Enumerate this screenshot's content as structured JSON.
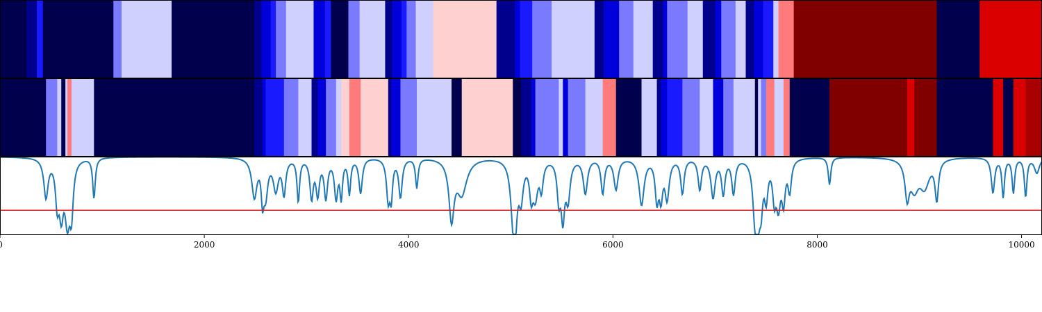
{
  "chart_data": {
    "type": "heatmap",
    "x_range": [
      0,
      10200
    ],
    "x_ticks": [
      {
        "value": 0,
        "label": "0"
      },
      {
        "value": 2000,
        "label": "2000"
      },
      {
        "value": 4000,
        "label": "4000"
      },
      {
        "value": 6000,
        "label": "6000"
      },
      {
        "value": 8000,
        "label": "8000"
      },
      {
        "value": 10000,
        "label": "10000"
      }
    ],
    "colorscale": "seismic (dark blue → white → dark red)",
    "colors": {
      "-4": "#00004c",
      "-3": "#00008c",
      "-2": "#0000da",
      "-1": "#1a1aff",
      "0": "#7a7aff",
      "1": "#d0d0ff",
      "2": "#ffd0d0",
      "3": "#ff7a7a",
      "4": "#ff1a1a",
      "5": "#da0000",
      "6": "#a80000",
      "7": "#800000"
    },
    "strips": [
      {
        "segments": [
          [
            0,
            260,
            -4
          ],
          [
            260,
            360,
            -3
          ],
          [
            360,
            420,
            -1
          ],
          [
            420,
            590,
            -4
          ],
          [
            590,
            1110,
            -4
          ],
          [
            1110,
            1190,
            0
          ],
          [
            1190,
            1680,
            1
          ],
          [
            1680,
            2490,
            -4
          ],
          [
            2490,
            2560,
            -3
          ],
          [
            2560,
            2650,
            -2
          ],
          [
            2650,
            2700,
            -1
          ],
          [
            2700,
            2800,
            0
          ],
          [
            2800,
            3070,
            1
          ],
          [
            3070,
            3180,
            -2
          ],
          [
            3180,
            3240,
            -1
          ],
          [
            3240,
            3410,
            -4
          ],
          [
            3410,
            3520,
            0
          ],
          [
            3520,
            3770,
            1
          ],
          [
            3770,
            3840,
            -3
          ],
          [
            3840,
            3930,
            -2
          ],
          [
            3930,
            3980,
            -1
          ],
          [
            3980,
            4070,
            0
          ],
          [
            4070,
            4240,
            1
          ],
          [
            4240,
            4860,
            2
          ],
          [
            4860,
            5040,
            -3
          ],
          [
            5040,
            5090,
            -2
          ],
          [
            5090,
            5210,
            -1
          ],
          [
            5210,
            5400,
            0
          ],
          [
            5400,
            5820,
            1
          ],
          [
            5820,
            5910,
            -3
          ],
          [
            5910,
            6060,
            -2
          ],
          [
            6060,
            6200,
            0
          ],
          [
            6200,
            6390,
            1
          ],
          [
            6390,
            6490,
            -3
          ],
          [
            6490,
            6530,
            -2
          ],
          [
            6530,
            6730,
            0
          ],
          [
            6730,
            6880,
            1
          ],
          [
            6880,
            7000,
            -3
          ],
          [
            7000,
            7060,
            -2
          ],
          [
            7060,
            7200,
            0
          ],
          [
            7200,
            7300,
            1
          ],
          [
            7300,
            7380,
            -3
          ],
          [
            7380,
            7470,
            -2
          ],
          [
            7470,
            7570,
            -1
          ],
          [
            7570,
            7620,
            1
          ],
          [
            7620,
            7770,
            3
          ],
          [
            7770,
            9170,
            7
          ],
          [
            9170,
            9590,
            -4
          ],
          [
            9590,
            10200,
            5
          ]
        ]
      },
      {
        "segments": [
          [
            0,
            450,
            -4
          ],
          [
            450,
            560,
            0
          ],
          [
            560,
            600,
            1
          ],
          [
            600,
            640,
            -4
          ],
          [
            640,
            660,
            1
          ],
          [
            660,
            700,
            3
          ],
          [
            700,
            920,
            1
          ],
          [
            920,
            2490,
            -4
          ],
          [
            2490,
            2570,
            -3
          ],
          [
            2570,
            2600,
            -2
          ],
          [
            2600,
            2780,
            -1
          ],
          [
            2780,
            2920,
            0
          ],
          [
            2920,
            3050,
            1
          ],
          [
            3050,
            3110,
            -3
          ],
          [
            3110,
            3190,
            -2
          ],
          [
            3190,
            3290,
            0
          ],
          [
            3290,
            3340,
            1
          ],
          [
            3340,
            3420,
            2
          ],
          [
            3420,
            3530,
            3
          ],
          [
            3530,
            3800,
            2
          ],
          [
            3800,
            3830,
            -3
          ],
          [
            3830,
            3920,
            -2
          ],
          [
            3920,
            4080,
            0
          ],
          [
            4080,
            4420,
            1
          ],
          [
            4420,
            4520,
            -4
          ],
          [
            4520,
            5020,
            2
          ],
          [
            5020,
            5100,
            -4
          ],
          [
            5100,
            5200,
            -3
          ],
          [
            5200,
            5240,
            -2
          ],
          [
            5240,
            5470,
            0
          ],
          [
            5470,
            5510,
            1
          ],
          [
            5510,
            5560,
            -2
          ],
          [
            5560,
            5730,
            0
          ],
          [
            5730,
            5900,
            1
          ],
          [
            5900,
            6030,
            3
          ],
          [
            6030,
            6280,
            -4
          ],
          [
            6280,
            6430,
            1
          ],
          [
            6430,
            6470,
            -3
          ],
          [
            6470,
            6530,
            -2
          ],
          [
            6530,
            6680,
            -1
          ],
          [
            6680,
            6850,
            0
          ],
          [
            6850,
            6980,
            1
          ],
          [
            6980,
            7080,
            -2
          ],
          [
            7080,
            7180,
            0
          ],
          [
            7180,
            7390,
            1
          ],
          [
            7390,
            7420,
            -4
          ],
          [
            7420,
            7450,
            1
          ],
          [
            7450,
            7500,
            0
          ],
          [
            7500,
            7580,
            3
          ],
          [
            7580,
            7670,
            1
          ],
          [
            7670,
            7730,
            3
          ],
          [
            7730,
            8120,
            -4
          ],
          [
            8120,
            8880,
            7
          ],
          [
            8880,
            8950,
            5
          ],
          [
            8950,
            9170,
            7
          ],
          [
            9170,
            9720,
            -4
          ],
          [
            9720,
            9820,
            5
          ],
          [
            9820,
            9920,
            -4
          ],
          [
            9920,
            10040,
            5
          ],
          [
            10040,
            10200,
            6
          ]
        ]
      }
    ],
    "line_series": {
      "y_range": [
        -1.0,
        0.0
      ],
      "line_color": "#1f77b4",
      "threshold": -0.69,
      "threshold_color": "#e41a1c",
      "dips": [
        [
          450,
          0.5,
          25
        ],
        [
          560,
          0.5,
          20
        ],
        [
          600,
          0.62,
          25
        ],
        [
          660,
          0.75,
          30
        ],
        [
          700,
          0.6,
          20
        ],
        [
          920,
          0.52,
          15
        ],
        [
          2490,
          0.5,
          30
        ],
        [
          2570,
          0.45,
          15
        ],
        [
          2600,
          0.45,
          25
        ],
        [
          2700,
          0.4,
          30
        ],
        [
          2780,
          0.45,
          20
        ],
        [
          2920,
          0.55,
          15
        ],
        [
          3050,
          0.5,
          20
        ],
        [
          3110,
          0.45,
          20
        ],
        [
          3190,
          0.5,
          20
        ],
        [
          3290,
          0.5,
          20
        ],
        [
          3340,
          0.48,
          15
        ],
        [
          3420,
          0.45,
          15
        ],
        [
          3530,
          0.45,
          20
        ],
        [
          3800,
          0.52,
          20
        ],
        [
          3830,
          0.45,
          15
        ],
        [
          3920,
          0.5,
          20
        ],
        [
          4080,
          0.38,
          15
        ],
        [
          4420,
          0.75,
          30
        ],
        [
          4520,
          0.45,
          60
        ],
        [
          5020,
          0.45,
          30
        ],
        [
          5040,
          0.8,
          25
        ],
        [
          5100,
          0.45,
          25
        ],
        [
          5200,
          0.4,
          20
        ],
        [
          5240,
          0.45,
          30
        ],
        [
          5300,
          0.35,
          20
        ],
        [
          5470,
          0.48,
          20
        ],
        [
          5510,
          0.7,
          20
        ],
        [
          5560,
          0.5,
          25
        ],
        [
          5730,
          0.45,
          25
        ],
        [
          5900,
          0.45,
          20
        ],
        [
          6030,
          0.4,
          25
        ],
        [
          6280,
          0.6,
          30
        ],
        [
          6430,
          0.5,
          20
        ],
        [
          6470,
          0.45,
          20
        ],
        [
          6530,
          0.5,
          25
        ],
        [
          6680,
          0.45,
          20
        ],
        [
          6850,
          0.4,
          20
        ],
        [
          6980,
          0.5,
          25
        ],
        [
          7080,
          0.45,
          20
        ],
        [
          7180,
          0.45,
          20
        ],
        [
          7390,
          0.7,
          25
        ],
        [
          7420,
          0.6,
          20
        ],
        [
          7450,
          0.5,
          20
        ],
        [
          7500,
          0.45,
          20
        ],
        [
          7580,
          0.45,
          20
        ],
        [
          7620,
          0.55,
          25
        ],
        [
          7670,
          0.5,
          20
        ],
        [
          7730,
          0.4,
          20
        ],
        [
          8120,
          0.35,
          15
        ],
        [
          8880,
          0.45,
          25
        ],
        [
          8950,
          0.35,
          50
        ],
        [
          9050,
          0.35,
          60
        ],
        [
          9170,
          0.5,
          20
        ],
        [
          9720,
          0.45,
          20
        ],
        [
          9820,
          0.5,
          15
        ],
        [
          9920,
          0.45,
          15
        ],
        [
          10040,
          0.5,
          15
        ],
        [
          10150,
          0.2,
          30
        ]
      ]
    }
  }
}
